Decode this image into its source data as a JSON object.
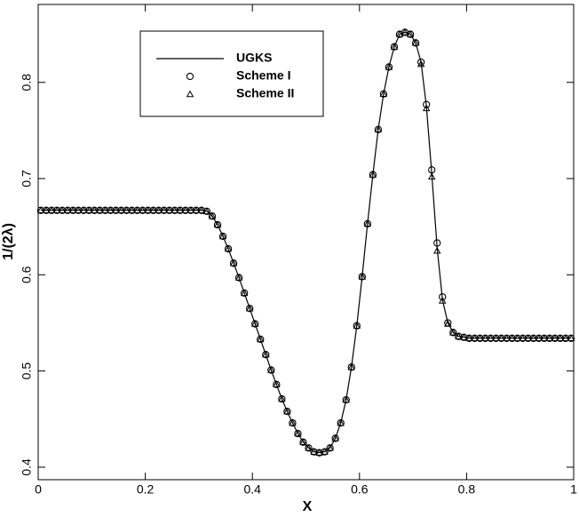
{
  "chart_data": {
    "type": "line",
    "xlabel": "X",
    "ylabel": "1/(2λ)",
    "x": [
      0.005,
      0.015,
      0.025,
      0.035,
      0.045,
      0.055,
      0.065,
      0.075,
      0.085,
      0.095,
      0.105,
      0.115,
      0.125,
      0.135,
      0.145,
      0.155,
      0.165,
      0.175,
      0.185,
      0.195,
      0.205,
      0.215,
      0.225,
      0.235,
      0.245,
      0.255,
      0.265,
      0.275,
      0.285,
      0.295,
      0.305,
      0.315,
      0.325,
      0.335,
      0.345,
      0.355,
      0.365,
      0.375,
      0.385,
      0.395,
      0.405,
      0.415,
      0.425,
      0.435,
      0.445,
      0.455,
      0.465,
      0.475,
      0.485,
      0.495,
      0.505,
      0.515,
      0.525,
      0.535,
      0.545,
      0.555,
      0.565,
      0.575,
      0.585,
      0.595,
      0.605,
      0.615,
      0.625,
      0.635,
      0.645,
      0.655,
      0.665,
      0.675,
      0.685,
      0.695,
      0.705,
      0.715,
      0.725,
      0.735,
      0.745,
      0.755,
      0.765,
      0.775,
      0.785,
      0.795,
      0.805,
      0.815,
      0.825,
      0.835,
      0.845,
      0.855,
      0.865,
      0.875,
      0.885,
      0.895,
      0.905,
      0.915,
      0.925,
      0.935,
      0.945,
      0.955,
      0.965,
      0.975,
      0.985,
      0.995
    ],
    "series": [
      {
        "name": "UGKS",
        "style": "line",
        "color": "#000000",
        "values": [
          0.667,
          0.667,
          0.667,
          0.667,
          0.667,
          0.667,
          0.667,
          0.667,
          0.667,
          0.667,
          0.667,
          0.667,
          0.667,
          0.667,
          0.667,
          0.667,
          0.667,
          0.667,
          0.667,
          0.667,
          0.667,
          0.667,
          0.667,
          0.667,
          0.667,
          0.667,
          0.667,
          0.667,
          0.667,
          0.667,
          0.667,
          0.666,
          0.661,
          0.652,
          0.64,
          0.627,
          0.612,
          0.597,
          0.581,
          0.565,
          0.549,
          0.533,
          0.517,
          0.501,
          0.486,
          0.471,
          0.458,
          0.446,
          0.435,
          0.426,
          0.42,
          0.416,
          0.415,
          0.416,
          0.42,
          0.43,
          0.446,
          0.47,
          0.504,
          0.547,
          0.598,
          0.653,
          0.704,
          0.751,
          0.788,
          0.816,
          0.837,
          0.85,
          0.852,
          0.85,
          0.841,
          0.821,
          0.775,
          0.705,
          0.628,
          0.574,
          0.55,
          0.54,
          0.536,
          0.535,
          0.534,
          0.534,
          0.534,
          0.534,
          0.534,
          0.534,
          0.534,
          0.534,
          0.534,
          0.534,
          0.534,
          0.534,
          0.534,
          0.534,
          0.534,
          0.534,
          0.534,
          0.534,
          0.534,
          0.534
        ]
      },
      {
        "name": "Scheme I",
        "style": "circle",
        "color": "#000000",
        "values": [
          0.667,
          0.667,
          0.667,
          0.667,
          0.667,
          0.667,
          0.667,
          0.667,
          0.667,
          0.667,
          0.667,
          0.667,
          0.667,
          0.667,
          0.667,
          0.667,
          0.667,
          0.667,
          0.667,
          0.667,
          0.667,
          0.667,
          0.667,
          0.667,
          0.667,
          0.667,
          0.667,
          0.667,
          0.667,
          0.667,
          0.667,
          0.666,
          0.661,
          0.652,
          0.64,
          0.627,
          0.612,
          0.597,
          0.581,
          0.565,
          0.549,
          0.533,
          0.517,
          0.501,
          0.486,
          0.471,
          0.458,
          0.446,
          0.435,
          0.426,
          0.42,
          0.416,
          0.415,
          0.416,
          0.42,
          0.43,
          0.446,
          0.47,
          0.504,
          0.547,
          0.598,
          0.653,
          0.704,
          0.751,
          0.788,
          0.816,
          0.837,
          0.85,
          0.852,
          0.85,
          0.841,
          0.821,
          0.777,
          0.709,
          0.633,
          0.577,
          0.55,
          0.54,
          0.536,
          0.535,
          0.534,
          0.534,
          0.534,
          0.534,
          0.534,
          0.534,
          0.534,
          0.534,
          0.534,
          0.534,
          0.534,
          0.534,
          0.534,
          0.534,
          0.534,
          0.534,
          0.534,
          0.534,
          0.534,
          0.534
        ]
      },
      {
        "name": "Scheme II",
        "style": "triangle",
        "color": "#000000",
        "values": [
          0.667,
          0.667,
          0.667,
          0.667,
          0.667,
          0.667,
          0.667,
          0.667,
          0.667,
          0.667,
          0.667,
          0.667,
          0.667,
          0.667,
          0.667,
          0.667,
          0.667,
          0.667,
          0.667,
          0.667,
          0.667,
          0.667,
          0.667,
          0.667,
          0.667,
          0.667,
          0.667,
          0.667,
          0.667,
          0.667,
          0.667,
          0.666,
          0.661,
          0.652,
          0.64,
          0.627,
          0.612,
          0.597,
          0.581,
          0.565,
          0.549,
          0.533,
          0.517,
          0.501,
          0.486,
          0.471,
          0.458,
          0.446,
          0.435,
          0.426,
          0.42,
          0.416,
          0.415,
          0.416,
          0.42,
          0.43,
          0.446,
          0.47,
          0.504,
          0.547,
          0.598,
          0.653,
          0.704,
          0.751,
          0.788,
          0.816,
          0.837,
          0.85,
          0.852,
          0.85,
          0.841,
          0.819,
          0.773,
          0.702,
          0.625,
          0.573,
          0.549,
          0.54,
          0.536,
          0.535,
          0.534,
          0.534,
          0.534,
          0.534,
          0.534,
          0.534,
          0.534,
          0.534,
          0.534,
          0.534,
          0.534,
          0.534,
          0.534,
          0.534,
          0.534,
          0.534,
          0.534,
          0.534,
          0.534,
          0.534
        ]
      }
    ],
    "xlim": [
      0,
      1
    ],
    "ylim": [
      0.387,
      0.881
    ],
    "xticks": [
      0,
      0.2,
      0.4,
      0.6,
      0.8,
      1
    ],
    "yticks": [
      0.4,
      0.5,
      0.6,
      0.7,
      0.8
    ],
    "grid": false,
    "legend": "upper left"
  }
}
